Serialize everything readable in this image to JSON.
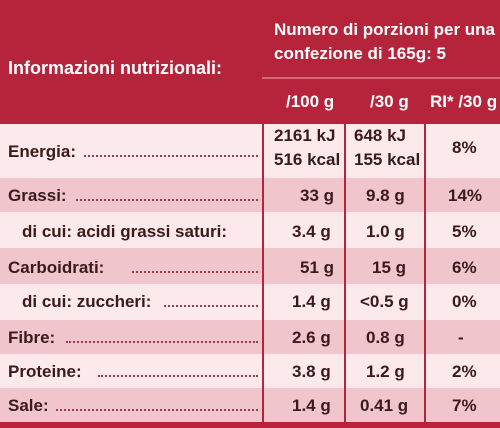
{
  "header": {
    "title": "Informazioni nutrizionali:",
    "portions_line1": "Numero di porzioni per una",
    "portions_line2": "confezione di 165g: 5",
    "col_100g": "/100 g",
    "col_30g": "/30 g",
    "col_ri": "RI* /30 g"
  },
  "rows": [
    {
      "label": "Energia:",
      "per100a": "2161 kJ",
      "per100b": "516 kcal",
      "per30a": "648 kJ",
      "per30b": "155 kcal",
      "ri": "8%"
    },
    {
      "label": "Grassi:",
      "per100": "33 g",
      "per30": "9.8 g",
      "ri": "14%"
    },
    {
      "label": "di cui: acidi grassi saturi:",
      "per100": "3.4 g",
      "per30": "1.0 g",
      "ri": "5%"
    },
    {
      "label": "Carboidrati:",
      "per100": "51 g",
      "per30": "15 g",
      "ri": "6%"
    },
    {
      "label": "di cui: zuccheri:",
      "per100": "1.4 g",
      "per30": "<0.5 g",
      "ri": "0%"
    },
    {
      "label": "Fibre:",
      "per100": "2.6 g",
      "per30": "0.8 g",
      "ri": "-"
    },
    {
      "label": "Proteine:",
      "per100": "3.8 g",
      "per30": "1.2 g",
      "ri": "2%"
    },
    {
      "label": "Sale:",
      "per100": "1.4 g",
      "per30": "0.41 g",
      "ri": "7%"
    }
  ],
  "colors": {
    "header_red": "#b5243a",
    "row_light": "#fbe9ec",
    "row_pink": "#f1c5cc"
  }
}
